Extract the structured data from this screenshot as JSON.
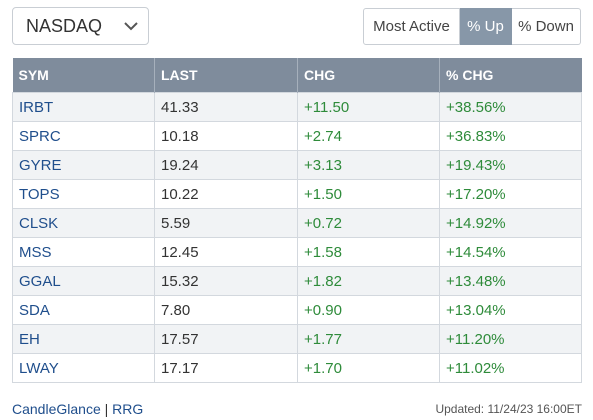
{
  "exchange_select": {
    "value": "NASDAQ",
    "icon": "chevron-down-icon"
  },
  "tabs": [
    {
      "label": "Most Active",
      "active": false
    },
    {
      "label": "% Up",
      "active": true
    },
    {
      "label": "% Down",
      "active": false
    }
  ],
  "table": {
    "columns": [
      "SYM",
      "LAST",
      "CHG",
      "% CHG"
    ],
    "rows": [
      {
        "sym": "IRBT",
        "last": "41.33",
        "chg": "+11.50",
        "pct": "+38.56%"
      },
      {
        "sym": "SPRC",
        "last": "10.18",
        "chg": "+2.74",
        "pct": "+36.83%"
      },
      {
        "sym": "GYRE",
        "last": "19.24",
        "chg": "+3.13",
        "pct": "+19.43%"
      },
      {
        "sym": "TOPS",
        "last": "10.22",
        "chg": "+1.50",
        "pct": "+17.20%"
      },
      {
        "sym": "CLSK",
        "last": "5.59",
        "chg": "+0.72",
        "pct": "+14.92%"
      },
      {
        "sym": "MSS",
        "last": "12.45",
        "chg": "+1.58",
        "pct": "+14.54%"
      },
      {
        "sym": "GGAL",
        "last": "15.32",
        "chg": "+1.82",
        "pct": "+13.48%"
      },
      {
        "sym": "SDA",
        "last": "7.80",
        "chg": "+0.90",
        "pct": "+13.04%"
      },
      {
        "sym": "EH",
        "last": "17.57",
        "chg": "+1.77",
        "pct": "+11.20%"
      },
      {
        "sym": "LWAY",
        "last": "17.17",
        "chg": "+1.70",
        "pct": "+11.02%"
      }
    ]
  },
  "footer": {
    "links": [
      "CandleGlance",
      "RRG"
    ],
    "separator": "|",
    "updated": "Updated: 11/24/23 16:00ET"
  },
  "colors": {
    "header_bg": "#7f8c9c",
    "active_tab_bg": "#8797a8",
    "positive": "#2e8b3a",
    "link": "#1f4e8c"
  }
}
